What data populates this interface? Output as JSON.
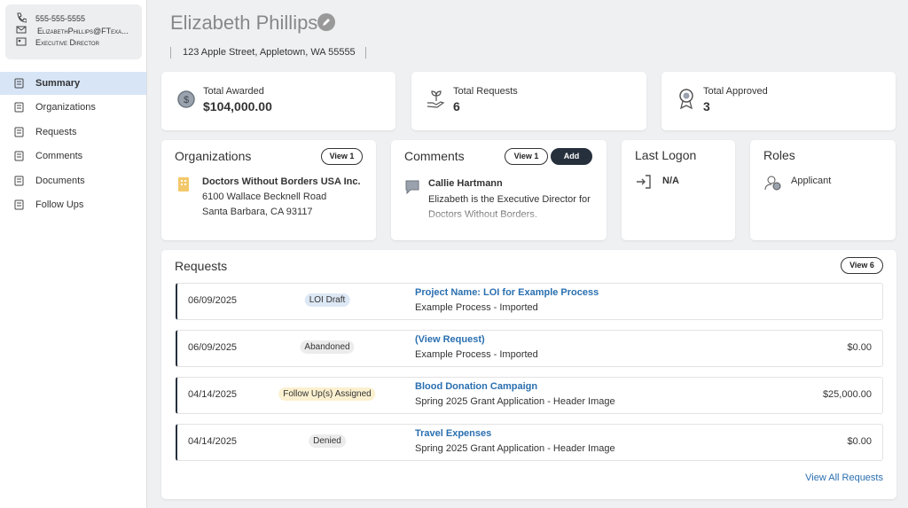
{
  "contact": {
    "phone": "555-555-5555",
    "email": "ElizabethPhillips@FTexa...",
    "title": "Executive Director"
  },
  "nav": [
    {
      "label": "Summary",
      "active": true
    },
    {
      "label": "Organizations",
      "active": false
    },
    {
      "label": "Requests",
      "active": false
    },
    {
      "label": "Comments",
      "active": false
    },
    {
      "label": "Documents",
      "active": false
    },
    {
      "label": "Follow Ups",
      "active": false
    }
  ],
  "header": {
    "name": "Elizabeth Phillips",
    "address": "123 Apple Street, Appletown, WA 55555"
  },
  "stats": [
    {
      "label": "Total Awarded",
      "value": "$104,000.00"
    },
    {
      "label": "Total Requests",
      "value": "6"
    },
    {
      "label": "Total Approved",
      "value": "3"
    }
  ],
  "organizations": {
    "title": "Organizations",
    "button": "View 1",
    "name": "Doctors Without Borders USA Inc.",
    "address1": "6100 Wallace Becknell Road",
    "address2": "Santa Barbara, CA 93117"
  },
  "comments": {
    "title": "Comments",
    "buttons": [
      "View 1",
      "Add"
    ],
    "author": "Callie Hartmann",
    "text": "Elizabeth is the Executive Director for Doctors Without Borders."
  },
  "last_logon": {
    "title": "Last Logon",
    "value": "N/A"
  },
  "roles": {
    "title": "Roles",
    "value": "Applicant"
  },
  "requests": {
    "title": "Requests",
    "button": "View 6",
    "footer": "View All Requests",
    "rows": [
      {
        "date": "06/09/2025",
        "status": "LOI Draft",
        "badge_color": "#dde8f5",
        "name": "Project Name: LOI for Example Process",
        "process": "Example Process - Imported"
      },
      {
        "date": "06/09/2025",
        "status": "Abandoned",
        "badge_color": "#ececec",
        "name": "(View Request)",
        "process": "Example Process - Imported",
        "amount": "$0.00"
      },
      {
        "date": "04/14/2025",
        "status": "Follow Up(s) Assigned",
        "badge_color": "#fbf0cf",
        "name": "Blood Donation Campaign",
        "process": "Spring 2025 Grant Application - Header Image",
        "amount": "$25,000.00"
      },
      {
        "date": "04/14/2025",
        "status": "Denied",
        "badge_color": "#ececec",
        "name": "Travel Expenses",
        "process": "Spring 2025 Grant Application - Header Image",
        "amount": "$0.00"
      }
    ]
  }
}
